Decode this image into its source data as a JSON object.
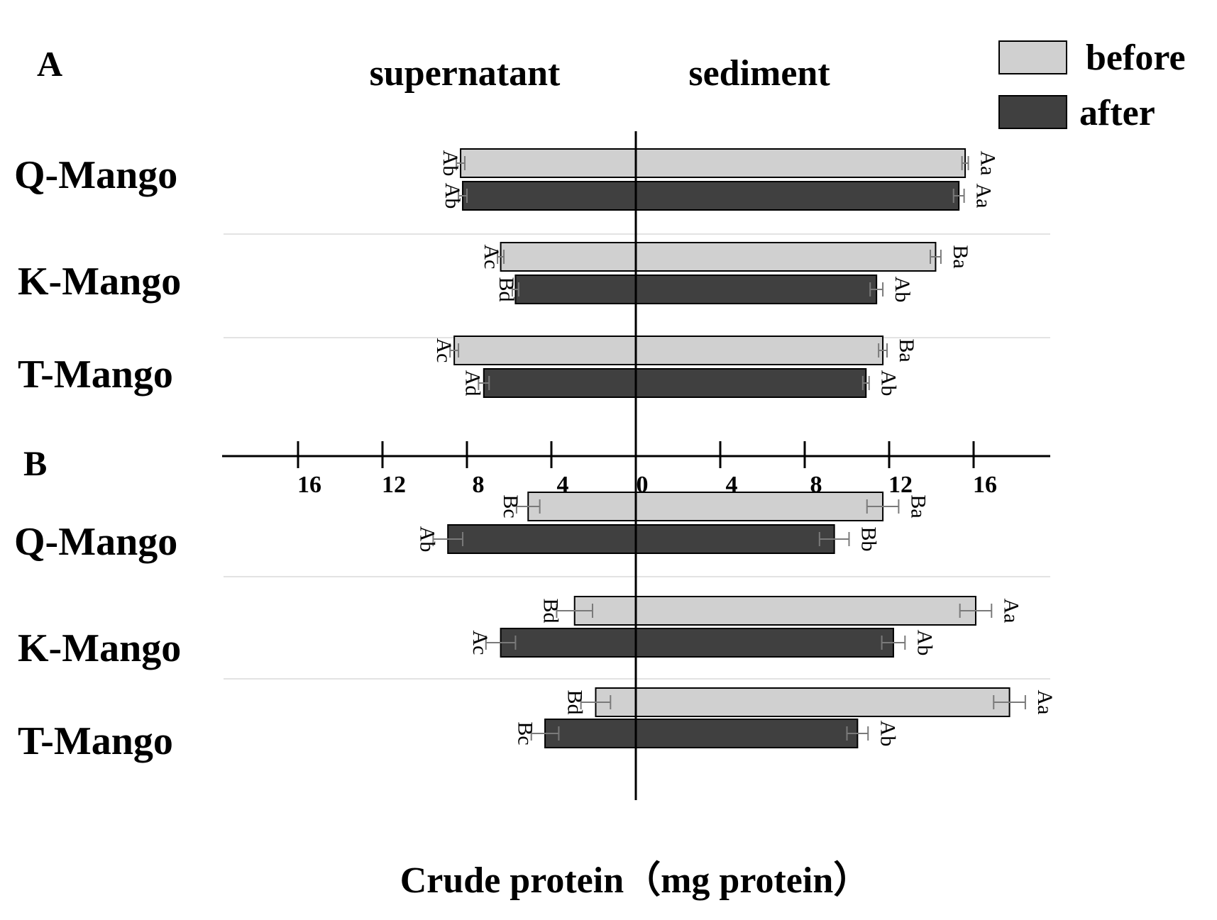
{
  "chart_data": {
    "type": "bar",
    "orientation": "horizontal-diverging",
    "xlabel": "Crude protein（mg protein）",
    "side_labels": {
      "left": "supernatant",
      "right": "sediment"
    },
    "xlim": [
      -18,
      18
    ],
    "ticks": [
      {
        "value": -16,
        "label": "16"
      },
      {
        "value": -12,
        "label": "12"
      },
      {
        "value": -8,
        "label": "8"
      },
      {
        "value": -4,
        "label": "4"
      },
      {
        "value": 0,
        "label": "0"
      },
      {
        "value": 4,
        "label": "4"
      },
      {
        "value": 8,
        "label": "8"
      },
      {
        "value": 12,
        "label": "12"
      },
      {
        "value": 16,
        "label": "16"
      }
    ],
    "legend": [
      {
        "name": "before",
        "color": "#d0d0d0"
      },
      {
        "name": "after",
        "color": "#404040"
      }
    ],
    "panels": [
      {
        "label": "A",
        "groups": [
          {
            "category": "Q-Mango",
            "series": [
              {
                "name": "before",
                "supernatant": 8.3,
                "sup_err": 0.2,
                "sup_sig": "Ab",
                "sediment": 15.6,
                "sed_err": 0.15,
                "sed_sig": "Aa"
              },
              {
                "name": "after",
                "supernatant": 8.2,
                "sup_err": 0.2,
                "sup_sig": "Ab",
                "sediment": 15.3,
                "sed_err": 0.25,
                "sed_sig": "Aa"
              }
            ]
          },
          {
            "category": "K-Mango",
            "series": [
              {
                "name": "before",
                "supernatant": 6.4,
                "sup_err": 0.15,
                "sup_sig": "Ac",
                "sediment": 14.2,
                "sed_err": 0.25,
                "sed_sig": "Ba"
              },
              {
                "name": "after",
                "supernatant": 5.7,
                "sup_err": 0.15,
                "sup_sig": "Bd",
                "sediment": 11.4,
                "sed_err": 0.3,
                "sed_sig": "Ab"
              }
            ]
          },
          {
            "category": "T-Mango",
            "series": [
              {
                "name": "before",
                "supernatant": 8.6,
                "sup_err": 0.2,
                "sup_sig": "Ac",
                "sediment": 11.7,
                "sed_err": 0.2,
                "sed_sig": "Ba"
              },
              {
                "name": "after",
                "supernatant": 7.2,
                "sup_err": 0.25,
                "sup_sig": "Ad",
                "sediment": 10.9,
                "sed_err": 0.15,
                "sed_sig": "Ab"
              }
            ]
          }
        ]
      },
      {
        "label": "B",
        "groups": [
          {
            "category": "Q-Mango",
            "series": [
              {
                "name": "before",
                "supernatant": 5.1,
                "sup_err": 0.55,
                "sup_sig": "Bc",
                "sediment": 11.7,
                "sed_err": 0.75,
                "sed_sig": "Ba"
              },
              {
                "name": "after",
                "supernatant": 8.9,
                "sup_err": 0.7,
                "sup_sig": "Ab",
                "sediment": 9.4,
                "sed_err": 0.7,
                "sed_sig": "Bb"
              }
            ]
          },
          {
            "category": "K-Mango",
            "series": [
              {
                "name": "before",
                "supernatant": 2.9,
                "sup_err": 0.85,
                "sup_sig": "Bd",
                "sediment": 16.1,
                "sed_err": 0.75,
                "sed_sig": "Aa"
              },
              {
                "name": "after",
                "supernatant": 6.4,
                "sup_err": 0.7,
                "sup_sig": "Ac",
                "sediment": 12.2,
                "sed_err": 0.55,
                "sed_sig": "Ab"
              }
            ]
          },
          {
            "category": "T-Mango",
            "series": [
              {
                "name": "before",
                "supernatant": 1.9,
                "sup_err": 0.7,
                "sup_sig": "Bd",
                "sediment": 17.7,
                "sed_err": 0.75,
                "sed_sig": "Aa"
              },
              {
                "name": "after",
                "supernatant": 4.3,
                "sup_err": 0.65,
                "sup_sig": "Bc",
                "sediment": 10.5,
                "sed_err": 0.5,
                "sed_sig": "Ab"
              }
            ]
          }
        ]
      }
    ]
  }
}
